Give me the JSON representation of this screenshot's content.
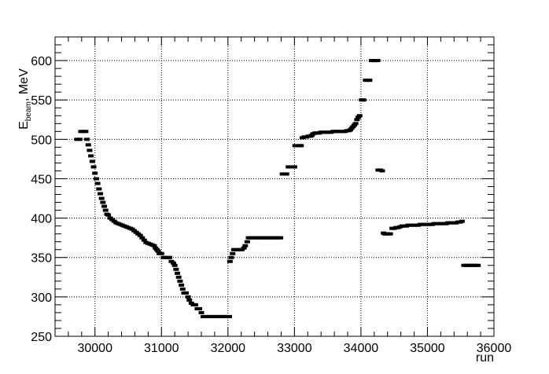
{
  "chart_data": {
    "type": "scatter",
    "title": "",
    "xlabel": "run",
    "ylabel": {
      "main": "E",
      "sub": "beam",
      "unit": ", MeV"
    },
    "xlim": [
      29400,
      36000
    ],
    "ylim": [
      250,
      630
    ],
    "xticks": [
      30000,
      31000,
      32000,
      33000,
      34000,
      35000,
      36000
    ],
    "yticks": [
      250,
      300,
      350,
      400,
      450,
      500,
      550,
      600
    ],
    "grid": true,
    "marker_color": "#000000",
    "series": [
      {
        "values": [
          [
            29730,
            500
          ],
          [
            29770,
            500
          ],
          [
            29790,
            510
          ],
          [
            29830,
            510
          ],
          [
            29860,
            510
          ],
          [
            29880,
            500
          ],
          [
            29900,
            493
          ],
          [
            29920,
            486
          ],
          [
            29940,
            479
          ],
          [
            29960,
            472
          ],
          [
            29980,
            465
          ],
          [
            30000,
            457
          ],
          [
            30020,
            450
          ],
          [
            30040,
            444
          ],
          [
            30060,
            437
          ],
          [
            30080,
            431
          ],
          [
            30100,
            425
          ],
          [
            30120,
            420
          ],
          [
            30140,
            415
          ],
          [
            30160,
            410
          ],
          [
            30180,
            405
          ],
          [
            30200,
            404
          ],
          [
            30230,
            400
          ],
          [
            30260,
            398
          ],
          [
            30290,
            396
          ],
          [
            30320,
            394
          ],
          [
            30350,
            393
          ],
          [
            30380,
            392
          ],
          [
            30410,
            391
          ],
          [
            30440,
            390
          ],
          [
            30470,
            389
          ],
          [
            30500,
            388
          ],
          [
            30530,
            387
          ],
          [
            30560,
            386
          ],
          [
            30590,
            384
          ],
          [
            30620,
            382
          ],
          [
            30650,
            380
          ],
          [
            30680,
            378
          ],
          [
            30710,
            375
          ],
          [
            30740,
            372
          ],
          [
            30770,
            369
          ],
          [
            30800,
            368
          ],
          [
            30830,
            367
          ],
          [
            30860,
            366
          ],
          [
            30890,
            365
          ],
          [
            30910,
            362
          ],
          [
            30930,
            360
          ],
          [
            30950,
            358
          ],
          [
            30970,
            355
          ],
          [
            31000,
            355
          ],
          [
            31030,
            350
          ],
          [
            31060,
            350
          ],
          [
            31090,
            350
          ],
          [
            31120,
            350
          ],
          [
            31150,
            345
          ],
          [
            31180,
            343
          ],
          [
            31200,
            340
          ],
          [
            31220,
            335
          ],
          [
            31240,
            330
          ],
          [
            31260,
            325
          ],
          [
            31280,
            320
          ],
          [
            31300,
            315
          ],
          [
            31320,
            310
          ],
          [
            31340,
            305
          ],
          [
            31370,
            305
          ],
          [
            31400,
            300
          ],
          [
            31420,
            296
          ],
          [
            31450,
            292
          ],
          [
            31480,
            290
          ],
          [
            31510,
            290
          ],
          [
            31540,
            285
          ],
          [
            31570,
            285
          ],
          [
            31600,
            280
          ],
          [
            31630,
            275
          ],
          [
            31660,
            275
          ],
          [
            31690,
            275
          ],
          [
            31720,
            275
          ],
          [
            31750,
            275
          ],
          [
            31780,
            275
          ],
          [
            31810,
            275
          ],
          [
            31840,
            275
          ],
          [
            31870,
            275
          ],
          [
            31900,
            275
          ],
          [
            31930,
            275
          ],
          [
            31960,
            275
          ],
          [
            31990,
            275
          ],
          [
            32020,
            275
          ],
          [
            32030,
            345
          ],
          [
            32050,
            350
          ],
          [
            32070,
            355
          ],
          [
            32090,
            360
          ],
          [
            32120,
            360
          ],
          [
            32150,
            360
          ],
          [
            32180,
            360
          ],
          [
            32210,
            360
          ],
          [
            32240,
            362
          ],
          [
            32260,
            365
          ],
          [
            32290,
            370
          ],
          [
            32310,
            375
          ],
          [
            32340,
            375
          ],
          [
            32370,
            375
          ],
          [
            32400,
            375
          ],
          [
            32430,
            375
          ],
          [
            32460,
            375
          ],
          [
            32490,
            375
          ],
          [
            32520,
            375
          ],
          [
            32550,
            375
          ],
          [
            32580,
            375
          ],
          [
            32610,
            375
          ],
          [
            32640,
            375
          ],
          [
            32670,
            375
          ],
          [
            32700,
            375
          ],
          [
            32730,
            375
          ],
          [
            32760,
            375
          ],
          [
            32790,
            375
          ],
          [
            32820,
            456
          ],
          [
            32850,
            456
          ],
          [
            32880,
            456
          ],
          [
            32910,
            465
          ],
          [
            32940,
            465
          ],
          [
            32970,
            465
          ],
          [
            33000,
            465
          ],
          [
            33010,
            492
          ],
          [
            33080,
            492
          ],
          [
            33100,
            492
          ],
          [
            33120,
            502
          ],
          [
            33150,
            503
          ],
          [
            33180,
            503
          ],
          [
            33210,
            504
          ],
          [
            33240,
            504
          ],
          [
            33260,
            505
          ],
          [
            33280,
            507
          ],
          [
            33310,
            508
          ],
          [
            33340,
            508
          ],
          [
            33370,
            508
          ],
          [
            33400,
            509
          ],
          [
            33430,
            509
          ],
          [
            33460,
            509
          ],
          [
            33490,
            509
          ],
          [
            33520,
            509
          ],
          [
            33550,
            509
          ],
          [
            33580,
            510
          ],
          [
            33610,
            510
          ],
          [
            33640,
            510
          ],
          [
            33670,
            510
          ],
          [
            33700,
            510
          ],
          [
            33730,
            510
          ],
          [
            33760,
            510
          ],
          [
            33790,
            511
          ],
          [
            33820,
            511
          ],
          [
            33840,
            512
          ],
          [
            33860,
            514
          ],
          [
            33880,
            516
          ],
          [
            33900,
            518
          ],
          [
            33920,
            520
          ],
          [
            33940,
            525
          ],
          [
            33960,
            528
          ],
          [
            33980,
            530
          ],
          [
            34010,
            550
          ],
          [
            34040,
            550
          ],
          [
            34070,
            575
          ],
          [
            34100,
            575
          ],
          [
            34130,
            575
          ],
          [
            34160,
            600
          ],
          [
            34190,
            600
          ],
          [
            34220,
            600
          ],
          [
            34250,
            600
          ],
          [
            34260,
            461
          ],
          [
            34290,
            461
          ],
          [
            34320,
            460
          ],
          [
            34340,
            381
          ],
          [
            34360,
            380
          ],
          [
            34380,
            380
          ],
          [
            34410,
            380
          ],
          [
            34440,
            380
          ],
          [
            34470,
            387
          ],
          [
            34500,
            387
          ],
          [
            34530,
            388
          ],
          [
            34560,
            388
          ],
          [
            34590,
            389
          ],
          [
            34620,
            390
          ],
          [
            34650,
            390
          ],
          [
            34680,
            390
          ],
          [
            34710,
            391
          ],
          [
            34740,
            391
          ],
          [
            34770,
            391
          ],
          [
            34800,
            391
          ],
          [
            34830,
            391
          ],
          [
            34860,
            391
          ],
          [
            34890,
            392
          ],
          [
            34920,
            392
          ],
          [
            34950,
            392
          ],
          [
            34980,
            392
          ],
          [
            35010,
            392
          ],
          [
            35040,
            392
          ],
          [
            35070,
            392
          ],
          [
            35100,
            393
          ],
          [
            35130,
            393
          ],
          [
            35160,
            393
          ],
          [
            35190,
            393
          ],
          [
            35220,
            393
          ],
          [
            35250,
            393
          ],
          [
            35280,
            393
          ],
          [
            35310,
            394
          ],
          [
            35340,
            394
          ],
          [
            35370,
            394
          ],
          [
            35400,
            394
          ],
          [
            35430,
            394
          ],
          [
            35460,
            395
          ],
          [
            35490,
            395
          ],
          [
            35520,
            396
          ],
          [
            35550,
            340
          ],
          [
            35580,
            340
          ],
          [
            35610,
            340
          ],
          [
            35640,
            340
          ],
          [
            35670,
            340
          ],
          [
            35700,
            340
          ],
          [
            35730,
            340
          ],
          [
            35760,
            340
          ]
        ]
      }
    ]
  }
}
